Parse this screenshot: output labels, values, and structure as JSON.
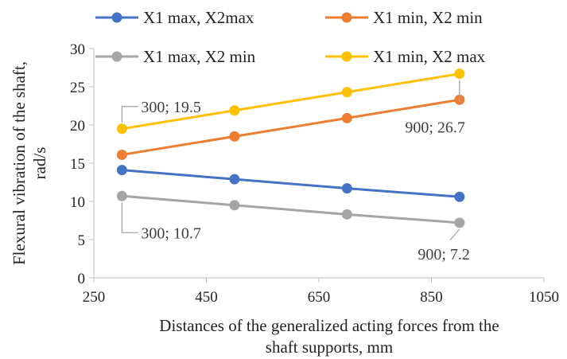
{
  "chart_data": {
    "type": "line",
    "title": "",
    "xlabel_lines": [
      "Distances of the generalized acting forces from the",
      "shaft supports, mm"
    ],
    "ylabel_lines": [
      "Flexural vibration of the shaft,",
      "rad/s"
    ],
    "xlim": [
      250,
      1050
    ],
    "ylim": [
      0,
      30
    ],
    "xticks": [
      250,
      450,
      650,
      850,
      1050
    ],
    "yticks": [
      0,
      5,
      10,
      15,
      20,
      25,
      30
    ],
    "grid": false,
    "legend_position": "top",
    "x": [
      300,
      500,
      700,
      900
    ],
    "series": [
      {
        "name": "X1 max, X2max",
        "color": "#4472C4",
        "values": [
          14.1,
          12.9,
          11.7,
          10.6
        ]
      },
      {
        "name": "X1 min, X2 min",
        "color": "#ED7D31",
        "values": [
          16.1,
          18.5,
          20.9,
          23.3
        ]
      },
      {
        "name": "X1 max, X2 min",
        "color": "#A5A5A5",
        "values": [
          10.7,
          9.5,
          8.3,
          7.2
        ]
      },
      {
        "name": "X1 min, X2 max",
        "color": "#FFC000",
        "values": [
          19.5,
          21.9,
          24.3,
          26.7
        ]
      }
    ],
    "annotations": [
      {
        "text": "300; 19.5",
        "series": 3,
        "point": 0
      },
      {
        "text": "900; 26.7",
        "series": 3,
        "point": 3
      },
      {
        "text": "300; 10.7",
        "series": 2,
        "point": 0
      },
      {
        "text": "900; 7.2",
        "series": 2,
        "point": 3
      }
    ]
  }
}
